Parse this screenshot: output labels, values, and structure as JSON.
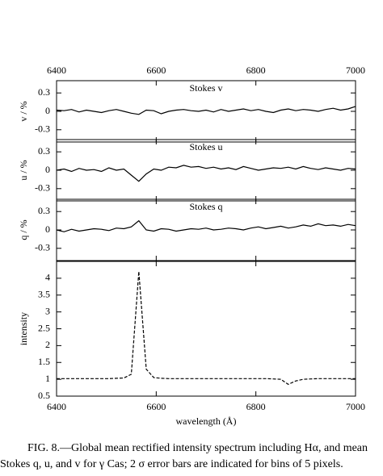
{
  "chart_data": [
    {
      "type": "line",
      "title": "Stokes v",
      "ylabel": "v / %",
      "xlim": [
        6400,
        7000
      ],
      "xticks": [
        6400,
        6600,
        6800,
        7000
      ],
      "ylim": [
        -0.5,
        0.5
      ],
      "yticks": [
        -0.3,
        0,
        0.3
      ],
      "x": [
        6400,
        6415,
        6430,
        6445,
        6460,
        6475,
        6490,
        6505,
        6520,
        6535,
        6550,
        6565,
        6580,
        6595,
        6610,
        6625,
        6640,
        6655,
        6670,
        6685,
        6700,
        6715,
        6730,
        6745,
        6760,
        6775,
        6790,
        6805,
        6820,
        6835,
        6850,
        6865,
        6880,
        6895,
        6910,
        6925,
        6940,
        6955,
        6970,
        6985,
        7000
      ],
      "series": [
        {
          "name": "Stokes v",
          "color": "#000000",
          "values": [
            0.02,
            0.01,
            0.03,
            -0.01,
            0.02,
            0.0,
            -0.02,
            0.01,
            0.03,
            0.0,
            -0.03,
            -0.05,
            0.02,
            0.01,
            -0.04,
            0.0,
            0.02,
            0.03,
            0.01,
            0.0,
            0.02,
            -0.01,
            0.03,
            0.0,
            0.02,
            0.04,
            0.01,
            0.03,
            0.0,
            -0.02,
            0.02,
            0.04,
            0.01,
            0.03,
            0.02,
            0.0,
            0.03,
            0.05,
            0.02,
            0.04,
            0.08
          ]
        }
      ]
    },
    {
      "type": "line",
      "title": "Stokes u",
      "ylabel": "u / %",
      "xlim": [
        6400,
        7000
      ],
      "xticks": [
        6400,
        6600,
        6800,
        7000
      ],
      "ylim": [
        -0.5,
        0.5
      ],
      "yticks": [
        -0.3,
        0,
        0.3
      ],
      "x": [
        6400,
        6415,
        6430,
        6445,
        6460,
        6475,
        6490,
        6505,
        6520,
        6535,
        6550,
        6565,
        6580,
        6595,
        6610,
        6625,
        6640,
        6655,
        6670,
        6685,
        6700,
        6715,
        6730,
        6745,
        6760,
        6775,
        6790,
        6805,
        6820,
        6835,
        6850,
        6865,
        6880,
        6895,
        6910,
        6925,
        6940,
        6955,
        6970,
        6985,
        7000
      ],
      "series": [
        {
          "name": "Stokes u",
          "color": "#000000",
          "values": [
            0.0,
            0.02,
            -0.02,
            0.03,
            0.0,
            0.01,
            -0.02,
            0.04,
            0.0,
            0.02,
            -0.08,
            -0.18,
            -0.06,
            0.02,
            0.0,
            0.05,
            0.04,
            0.08,
            0.05,
            0.06,
            0.03,
            0.05,
            0.02,
            0.04,
            0.01,
            0.06,
            0.03,
            0.0,
            0.02,
            0.04,
            0.03,
            0.05,
            0.02,
            0.06,
            0.03,
            0.01,
            0.04,
            0.02,
            0.0,
            0.03,
            0.02
          ]
        }
      ]
    },
    {
      "type": "line",
      "title": "Stokes q",
      "ylabel": "q / %",
      "xlim": [
        6400,
        7000
      ],
      "xticks": [
        6400,
        6600,
        6800,
        7000
      ],
      "ylim": [
        -0.5,
        0.5
      ],
      "yticks": [
        -0.3,
        0,
        0.3
      ],
      "x": [
        6400,
        6415,
        6430,
        6445,
        6460,
        6475,
        6490,
        6505,
        6520,
        6535,
        6550,
        6565,
        6580,
        6595,
        6610,
        6625,
        6640,
        6655,
        6670,
        6685,
        6700,
        6715,
        6730,
        6745,
        6760,
        6775,
        6790,
        6805,
        6820,
        6835,
        6850,
        6865,
        6880,
        6895,
        6910,
        6925,
        6940,
        6955,
        6970,
        6985,
        7000
      ],
      "series": [
        {
          "name": "Stokes q",
          "color": "#000000",
          "values": [
            0.0,
            -0.03,
            0.01,
            -0.02,
            0.0,
            0.02,
            0.01,
            -0.01,
            0.03,
            0.02,
            0.05,
            0.15,
            0.0,
            -0.02,
            0.02,
            0.01,
            -0.02,
            0.0,
            0.02,
            0.01,
            0.03,
            0.0,
            0.01,
            0.03,
            0.02,
            0.0,
            0.03,
            0.05,
            0.02,
            0.04,
            0.06,
            0.03,
            0.05,
            0.08,
            0.06,
            0.1,
            0.07,
            0.08,
            0.06,
            0.09,
            0.07
          ]
        }
      ]
    },
    {
      "type": "line",
      "ylabel": "intensity",
      "xlabel": "wavelength (Å)",
      "xlim": [
        6400,
        7000
      ],
      "xticks": [
        6400,
        6600,
        6800,
        7000
      ],
      "ylim": [
        0.5,
        4.5
      ],
      "yticks": [
        0.5,
        1,
        1.5,
        2,
        2.5,
        3,
        3.5,
        4
      ],
      "x": [
        6400,
        6415,
        6430,
        6445,
        6460,
        6475,
        6490,
        6505,
        6520,
        6535,
        6550,
        6565,
        6580,
        6595,
        6610,
        6625,
        6640,
        6655,
        6670,
        6685,
        6700,
        6715,
        6730,
        6745,
        6760,
        6775,
        6790,
        6805,
        6820,
        6835,
        6850,
        6865,
        6880,
        6895,
        6910,
        6925,
        6940,
        6955,
        6970,
        6985,
        7000
      ],
      "series": [
        {
          "name": "intensity",
          "color": "#000000",
          "dashed": true,
          "values": [
            1.02,
            1.02,
            1.02,
            1.02,
            1.02,
            1.02,
            1.02,
            1.02,
            1.03,
            1.04,
            1.15,
            4.2,
            1.3,
            1.05,
            1.03,
            1.02,
            1.02,
            1.02,
            1.02,
            1.02,
            1.02,
            1.02,
            1.02,
            1.02,
            1.02,
            1.02,
            1.02,
            1.02,
            1.02,
            1.01,
            1.0,
            0.85,
            0.95,
            1.0,
            1.01,
            1.02,
            1.02,
            1.02,
            1.02,
            1.02,
            1.02
          ]
        }
      ]
    }
  ],
  "caption": {
    "line1": "FIG. 8.—Global mean rectified intensity spectrum including Hα, and mean",
    "line2": "Stokes q, u, and v for γ Cas; 2 σ error bars are indicated for bins of 5 pixels."
  }
}
